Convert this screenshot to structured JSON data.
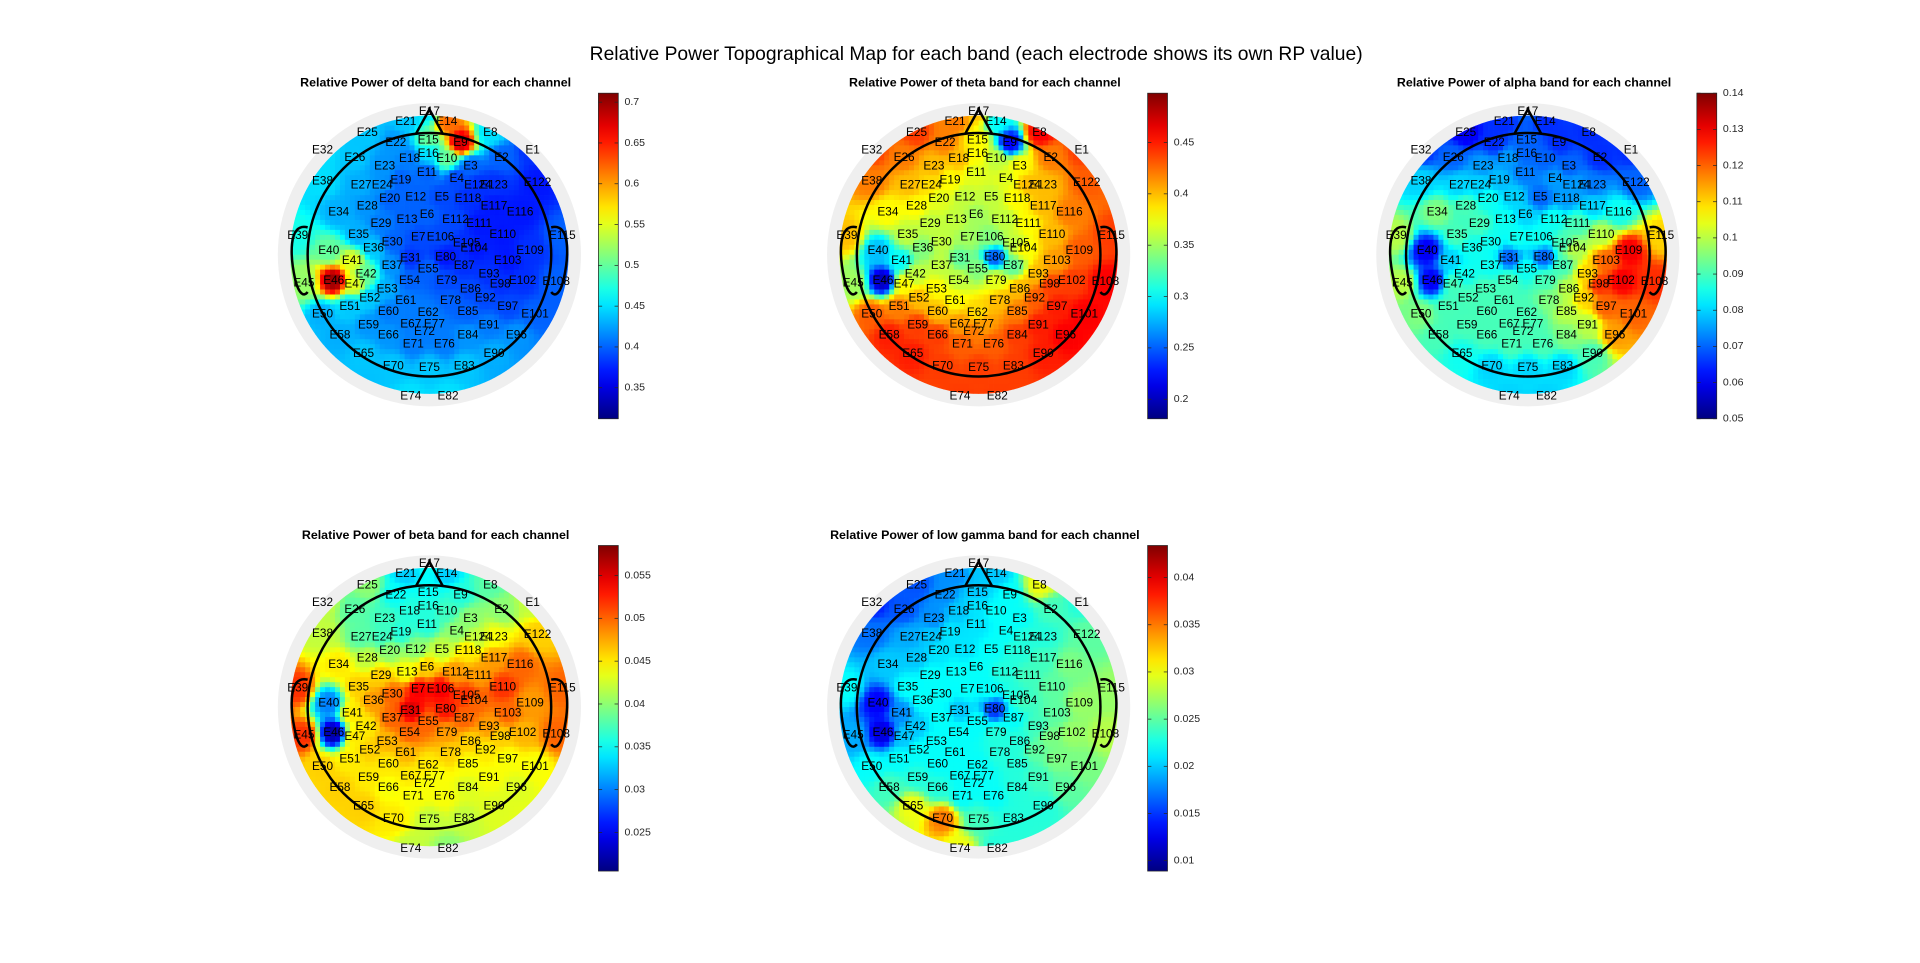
{
  "title": "Relative Power Topographical Map for each band (each electrode shows its own RP value)",
  "electrodes": [
    "E17",
    "E21",
    "E14",
    "E8",
    "E25",
    "E22",
    "E15",
    "E9",
    "E32",
    "E26",
    "E18",
    "E16",
    "E10",
    "E2",
    "E1",
    "E23",
    "E11",
    "E3",
    "E38",
    "E27",
    "E24",
    "E19",
    "E4",
    "E124",
    "E123",
    "E122",
    "E28",
    "E20",
    "E12",
    "E5",
    "E118",
    "E34",
    "E13",
    "E6",
    "E117",
    "E116",
    "E29",
    "E112",
    "E111",
    "E39",
    "E35",
    "E30",
    "E7",
    "E106",
    "E110",
    "E115",
    "E36",
    "E105",
    "E40",
    "E41",
    "E31",
    "E80",
    "E104",
    "E109",
    "E37",
    "E87",
    "E103",
    "E42",
    "E55",
    "E93",
    "E46",
    "E54",
    "E79",
    "E102",
    "E108",
    "E45",
    "E47",
    "E53",
    "E86",
    "E98",
    "E52",
    "E61",
    "E78",
    "E92",
    "E51",
    "E60",
    "E62",
    "E85",
    "E97",
    "E50",
    "E67",
    "E77",
    "E101",
    "E59",
    "E72",
    "E91",
    "E58",
    "E66",
    "E71",
    "E76",
    "E84",
    "E96",
    "E65",
    "E90",
    "E70",
    "E75",
    "E83",
    "E74",
    "E82"
  ],
  "chart_data": [
    {
      "type": "topoplot",
      "title": "Relative Power of delta band for each channel",
      "colormap": "jet",
      "ylim": [
        0.312,
        0.711
      ],
      "yticks": [
        0.35,
        0.4,
        0.45,
        0.5,
        0.55,
        0.6,
        0.65,
        0.7
      ],
      "values": [
        0.45,
        0.44,
        0.62,
        0.45,
        0.44,
        0.42,
        0.5,
        0.68,
        0.45,
        0.44,
        0.41,
        0.45,
        0.5,
        0.4,
        0.38,
        0.42,
        0.4,
        0.4,
        0.45,
        0.43,
        0.42,
        0.4,
        0.39,
        0.38,
        0.38,
        0.37,
        0.42,
        0.4,
        0.4,
        0.39,
        0.38,
        0.43,
        0.4,
        0.4,
        0.37,
        0.37,
        0.41,
        0.39,
        0.37,
        0.47,
        0.43,
        0.4,
        0.39,
        0.39,
        0.37,
        0.4,
        0.44,
        0.38,
        0.5,
        0.55,
        0.38,
        0.37,
        0.37,
        0.38,
        0.42,
        0.38,
        0.37,
        0.5,
        0.4,
        0.38,
        0.7,
        0.4,
        0.39,
        0.38,
        0.4,
        0.52,
        0.55,
        0.43,
        0.39,
        0.38,
        0.44,
        0.41,
        0.4,
        0.39,
        0.44,
        0.41,
        0.41,
        0.4,
        0.39,
        0.43,
        0.41,
        0.41,
        0.4,
        0.42,
        0.41,
        0.41,
        0.43,
        0.42,
        0.41,
        0.41,
        0.42,
        0.42,
        0.44,
        0.43,
        0.44,
        0.44,
        0.44,
        0.45,
        0.45
      ]
    },
    {
      "type": "topoplot",
      "title": "Relative Power of theta band for each channel",
      "colormap": "jet",
      "ylim": [
        0.181,
        0.498
      ],
      "yticks": [
        0.2,
        0.25,
        0.3,
        0.35,
        0.4,
        0.45
      ],
      "values": [
        0.4,
        0.42,
        0.3,
        0.46,
        0.44,
        0.42,
        0.38,
        0.22,
        0.44,
        0.42,
        0.4,
        0.38,
        0.36,
        0.42,
        0.44,
        0.4,
        0.37,
        0.38,
        0.42,
        0.4,
        0.39,
        0.38,
        0.37,
        0.4,
        0.4,
        0.43,
        0.38,
        0.37,
        0.36,
        0.36,
        0.38,
        0.38,
        0.36,
        0.35,
        0.4,
        0.42,
        0.36,
        0.36,
        0.38,
        0.4,
        0.36,
        0.36,
        0.35,
        0.34,
        0.4,
        0.44,
        0.34,
        0.36,
        0.28,
        0.3,
        0.33,
        0.25,
        0.38,
        0.43,
        0.36,
        0.33,
        0.41,
        0.36,
        0.34,
        0.4,
        0.2,
        0.36,
        0.37,
        0.44,
        0.46,
        0.35,
        0.38,
        0.38,
        0.4,
        0.44,
        0.4,
        0.38,
        0.4,
        0.43,
        0.42,
        0.4,
        0.39,
        0.42,
        0.45,
        0.43,
        0.41,
        0.41,
        0.46,
        0.44,
        0.42,
        0.45,
        0.45,
        0.44,
        0.43,
        0.43,
        0.44,
        0.46,
        0.45,
        0.45,
        0.44,
        0.44,
        0.44,
        0.44,
        0.44
      ]
    },
    {
      "type": "topoplot",
      "title": "Relative Power of alpha band for each channel",
      "colormap": "jet",
      "ylim": [
        0.05,
        0.14
      ],
      "yticks": [
        0.05,
        0.06,
        0.07,
        0.08,
        0.09,
        0.1,
        0.11,
        0.12,
        0.13,
        0.14
      ],
      "values": [
        0.07,
        0.065,
        0.065,
        0.065,
        0.06,
        0.065,
        0.07,
        0.065,
        0.065,
        0.07,
        0.075,
        0.07,
        0.07,
        0.065,
        0.065,
        0.075,
        0.072,
        0.07,
        0.08,
        0.08,
        0.08,
        0.078,
        0.075,
        0.075,
        0.072,
        0.07,
        0.09,
        0.085,
        0.08,
        0.07,
        0.075,
        0.095,
        0.085,
        0.08,
        0.08,
        0.085,
        0.09,
        0.085,
        0.09,
        0.1,
        0.09,
        0.085,
        0.085,
        0.085,
        0.1,
        0.11,
        0.085,
        0.09,
        0.06,
        0.08,
        0.07,
        0.07,
        0.1,
        0.13,
        0.085,
        0.09,
        0.12,
        0.085,
        0.085,
        0.11,
        0.06,
        0.09,
        0.09,
        0.13,
        0.125,
        0.1,
        0.09,
        0.09,
        0.1,
        0.125,
        0.09,
        0.09,
        0.095,
        0.11,
        0.09,
        0.09,
        0.09,
        0.1,
        0.12,
        0.095,
        0.09,
        0.09,
        0.12,
        0.09,
        0.09,
        0.1,
        0.09,
        0.09,
        0.09,
        0.09,
        0.095,
        0.115,
        0.085,
        0.09,
        0.08,
        0.08,
        0.08,
        0.08,
        0.08
      ]
    },
    {
      "type": "topoplot",
      "title": "Relative Power of beta band for each channel",
      "colormap": "jet",
      "ylim": [
        0.0205,
        0.0585
      ],
      "yticks": [
        0.025,
        0.03,
        0.035,
        0.04,
        0.045,
        0.05,
        0.055
      ],
      "values": [
        0.035,
        0.033,
        0.033,
        0.038,
        0.04,
        0.035,
        0.035,
        0.036,
        0.042,
        0.038,
        0.036,
        0.036,
        0.037,
        0.04,
        0.042,
        0.037,
        0.036,
        0.04,
        0.042,
        0.038,
        0.037,
        0.036,
        0.04,
        0.042,
        0.044,
        0.046,
        0.042,
        0.04,
        0.04,
        0.042,
        0.045,
        0.045,
        0.044,
        0.046,
        0.048,
        0.05,
        0.046,
        0.048,
        0.048,
        0.052,
        0.046,
        0.05,
        0.054,
        0.054,
        0.052,
        0.05,
        0.048,
        0.052,
        0.03,
        0.045,
        0.055,
        0.053,
        0.05,
        0.048,
        0.05,
        0.05,
        0.05,
        0.045,
        0.05,
        0.048,
        0.022,
        0.05,
        0.048,
        0.047,
        0.05,
        0.052,
        0.045,
        0.047,
        0.046,
        0.046,
        0.046,
        0.047,
        0.046,
        0.045,
        0.045,
        0.045,
        0.045,
        0.044,
        0.044,
        0.046,
        0.045,
        0.044,
        0.044,
        0.045,
        0.044,
        0.044,
        0.046,
        0.044,
        0.044,
        0.044,
        0.043,
        0.043,
        0.046,
        0.043,
        0.045,
        0.042,
        0.042,
        0.042,
        0.04
      ]
    },
    {
      "type": "topoplot",
      "title": "Relative Power of low gamma band for each channel",
      "colormap": "jet",
      "ylim": [
        0.0089,
        0.0434
      ],
      "yticks": [
        0.01,
        0.015,
        0.02,
        0.025,
        0.03,
        0.035,
        0.04
      ],
      "values": [
        0.02,
        0.018,
        0.02,
        0.03,
        0.016,
        0.018,
        0.02,
        0.022,
        0.014,
        0.016,
        0.02,
        0.021,
        0.022,
        0.024,
        0.023,
        0.018,
        0.021,
        0.022,
        0.017,
        0.019,
        0.02,
        0.021,
        0.022,
        0.023,
        0.023,
        0.025,
        0.02,
        0.021,
        0.021,
        0.022,
        0.023,
        0.02,
        0.022,
        0.022,
        0.024,
        0.026,
        0.022,
        0.023,
        0.024,
        0.022,
        0.022,
        0.022,
        0.022,
        0.022,
        0.025,
        0.027,
        0.022,
        0.023,
        0.013,
        0.018,
        0.02,
        0.015,
        0.024,
        0.027,
        0.022,
        0.022,
        0.025,
        0.02,
        0.022,
        0.024,
        0.012,
        0.022,
        0.023,
        0.027,
        0.028,
        0.019,
        0.02,
        0.022,
        0.023,
        0.026,
        0.022,
        0.022,
        0.023,
        0.025,
        0.022,
        0.022,
        0.022,
        0.023,
        0.026,
        0.022,
        0.022,
        0.022,
        0.026,
        0.023,
        0.022,
        0.024,
        0.024,
        0.023,
        0.022,
        0.022,
        0.023,
        0.025,
        0.03,
        0.023,
        0.035,
        0.024,
        0.023,
        0.03,
        0.023
      ]
    }
  ]
}
